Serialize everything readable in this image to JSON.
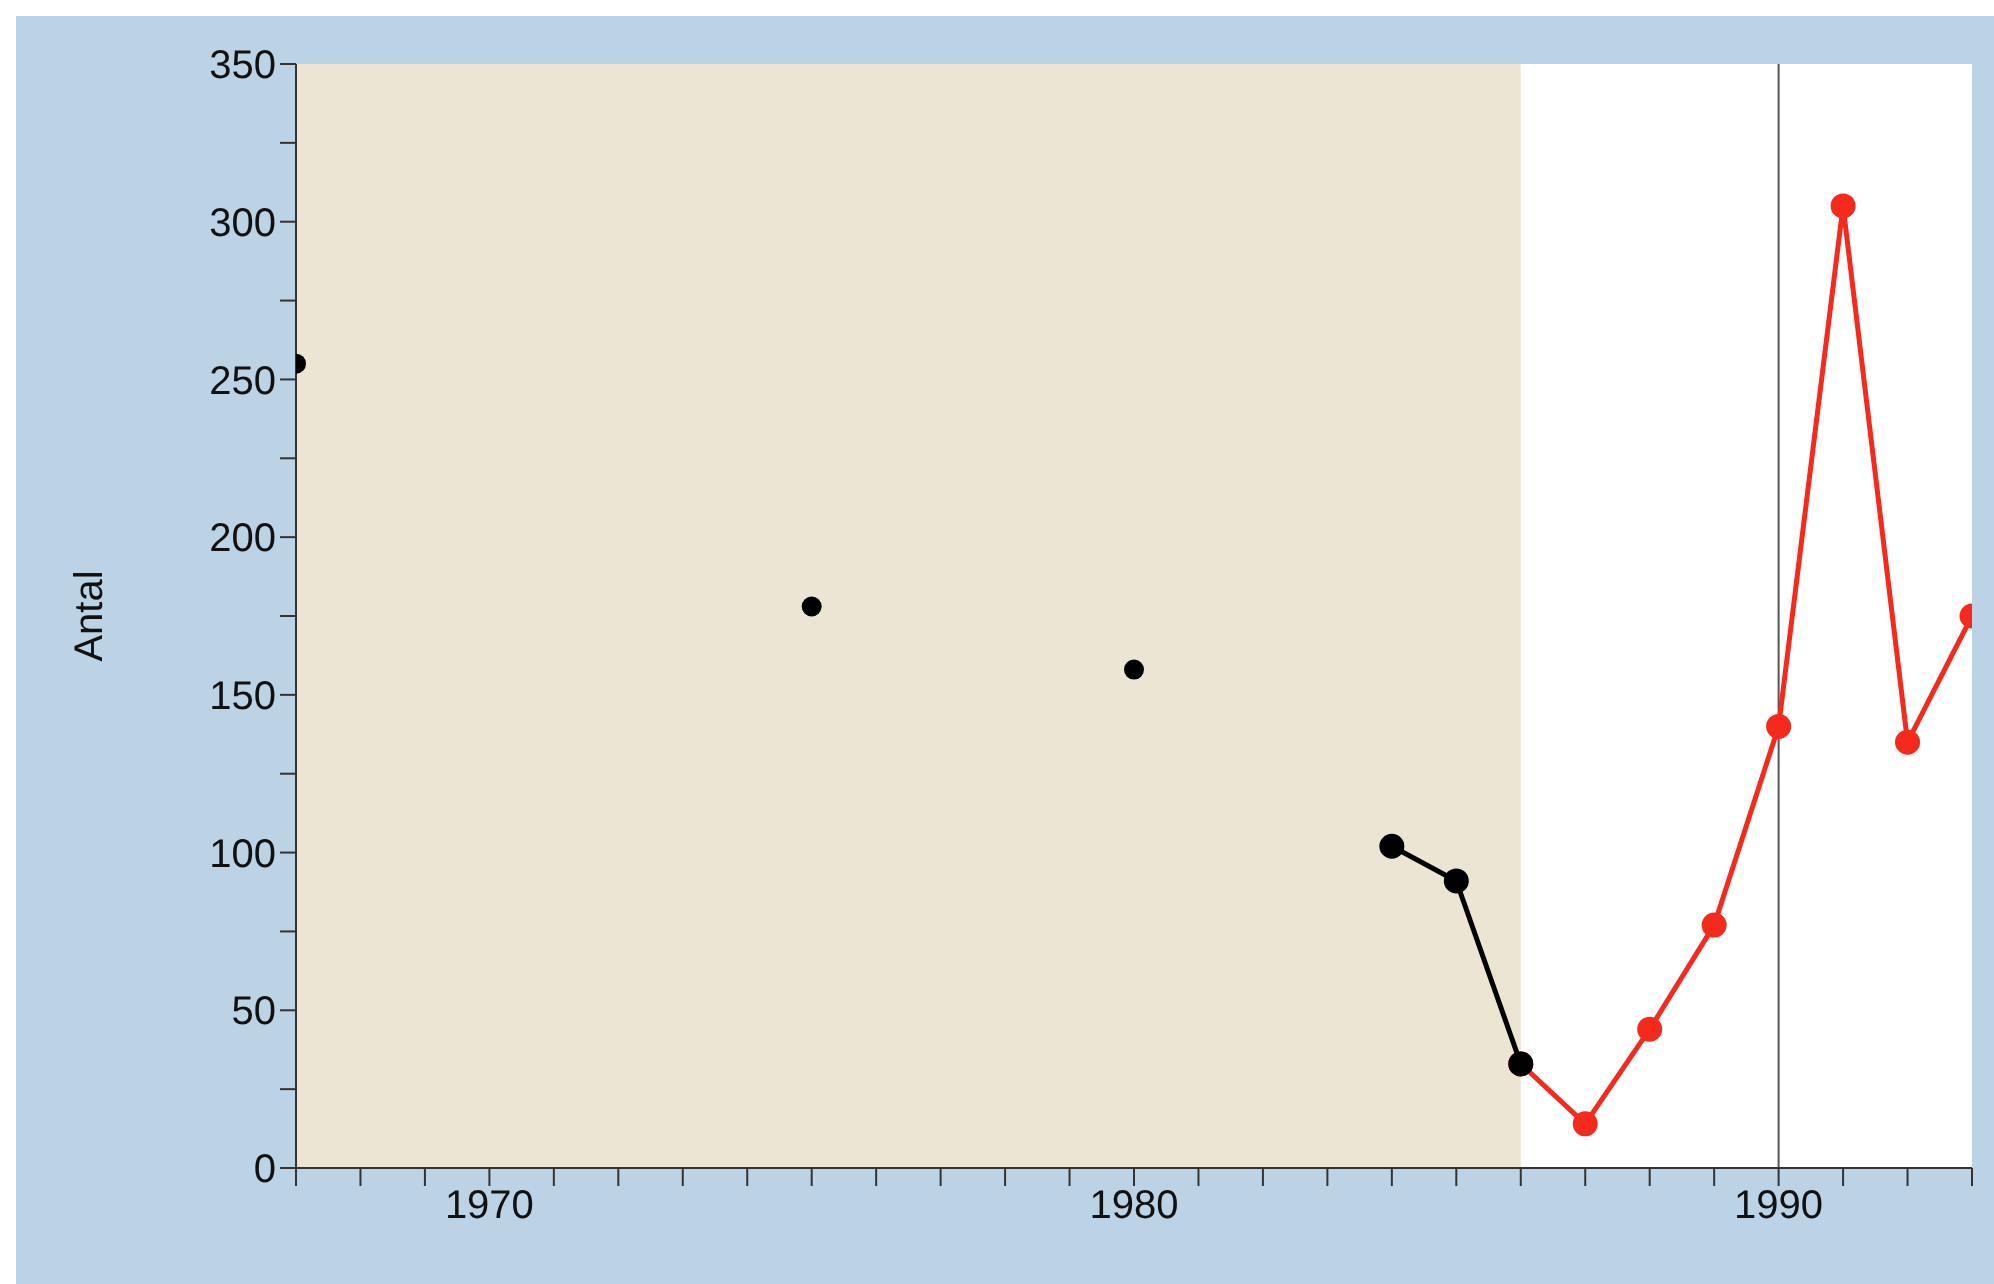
{
  "chart_data": {
    "type": "line",
    "ylabel": "Antal",
    "xlim": [
      1967,
      1993
    ],
    "xticks": [
      {
        "value": 1967,
        "label": null
      },
      {
        "value": 1968,
        "label": null
      },
      {
        "value": 1969,
        "label": null
      },
      1970,
      {
        "value": 1971,
        "label": null
      },
      {
        "value": 1972,
        "label": null
      },
      {
        "value": 1973,
        "label": null
      },
      {
        "value": 1974,
        "label": null
      },
      {
        "value": 1975,
        "label": null
      },
      {
        "value": 1976,
        "label": null
      },
      {
        "value": 1977,
        "label": null
      },
      {
        "value": 1978,
        "label": null
      },
      {
        "value": 1979,
        "label": null
      },
      1980,
      {
        "value": 1981,
        "label": null
      },
      {
        "value": 1982,
        "label": null
      },
      {
        "value": 1983,
        "label": null
      },
      {
        "value": 1984,
        "label": null
      },
      {
        "value": 1985,
        "label": null
      },
      {
        "value": 1986,
        "label": null
      },
      {
        "value": 1987,
        "label": null
      },
      {
        "value": 1988,
        "label": null
      },
      {
        "value": 1989,
        "label": null
      },
      1990,
      {
        "value": 1991,
        "label": null
      },
      {
        "value": 1992,
        "label": null
      },
      {
        "value": 1993,
        "label": null
      }
    ],
    "ylim": [
      0,
      350
    ],
    "yticks": [
      0,
      {
        "value": 25,
        "label": null
      },
      50,
      {
        "value": 75,
        "label": null
      },
      100,
      {
        "value": 125,
        "label": null
      },
      150,
      {
        "value": 175,
        "label": null
      },
      200,
      {
        "value": 225,
        "label": null
      },
      250,
      {
        "value": 275,
        "label": null
      },
      300,
      {
        "value": 325,
        "label": null
      },
      350
    ],
    "grid": "x",
    "legend": false,
    "marker": "circle",
    "line_style": "solid",
    "bands": [
      {
        "axis": "x",
        "from": 1967,
        "to": 1986,
        "color": "#ece5d3"
      }
    ],
    "series": [
      {
        "type": "scatter",
        "color": "#000000",
        "x": [
          1967,
          1975,
          1980
        ],
        "values": [
          255,
          178,
          158
        ]
      },
      {
        "type": "line",
        "color": "#000000",
        "x": [
          1984,
          1985,
          1986
        ],
        "values": [
          102,
          91,
          33
        ]
      },
      {
        "type": "line",
        "color": "#f42a1c",
        "x": [
          1986,
          1987,
          1988,
          1989,
          1990,
          1991,
          1992,
          1993
        ],
        "values": [
          33,
          14,
          44,
          77,
          140,
          305,
          135,
          175
        ]
      }
    ]
  }
}
